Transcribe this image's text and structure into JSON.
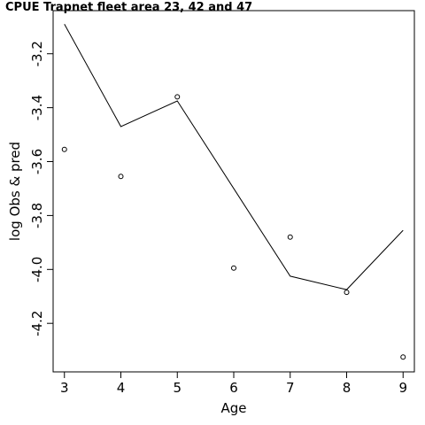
{
  "chart_data": {
    "type": "line",
    "title": "CPUE Trapnet fleet area 23, 42 and 47",
    "xlabel": "Age",
    "ylabel": "log Obs & pred",
    "xlim": [
      2.8,
      9.2
    ],
    "ylim": [
      -4.38,
      -3.04
    ],
    "x_ticks": [
      3,
      4,
      5,
      6,
      7,
      8,
      9
    ],
    "x_tick_labels": [
      "3",
      "4",
      "5",
      "6",
      "7",
      "8",
      "9"
    ],
    "y_ticks": [
      -3.2,
      -3.4,
      -3.6,
      -3.8,
      -4.0,
      -4.2
    ],
    "y_tick_labels": [
      "-3.2",
      "-3.4",
      "-3.6",
      "-3.8",
      "-4.0",
      "-4.2"
    ],
    "grid": false,
    "series": [
      {
        "style": "line",
        "color": "#000000",
        "x": [
          3,
          4,
          5,
          6,
          7,
          8,
          9
        ],
        "values": [
          -3.09,
          -3.47,
          -3.375,
          -3.7,
          -4.025,
          -4.075,
          -3.855
        ]
      },
      {
        "style": "points",
        "color": "#000000",
        "x": [
          3,
          4,
          5,
          6,
          7,
          8,
          9
        ],
        "values": [
          -3.555,
          -3.655,
          -3.36,
          -3.995,
          -3.88,
          -4.085,
          -4.325
        ]
      }
    ]
  }
}
